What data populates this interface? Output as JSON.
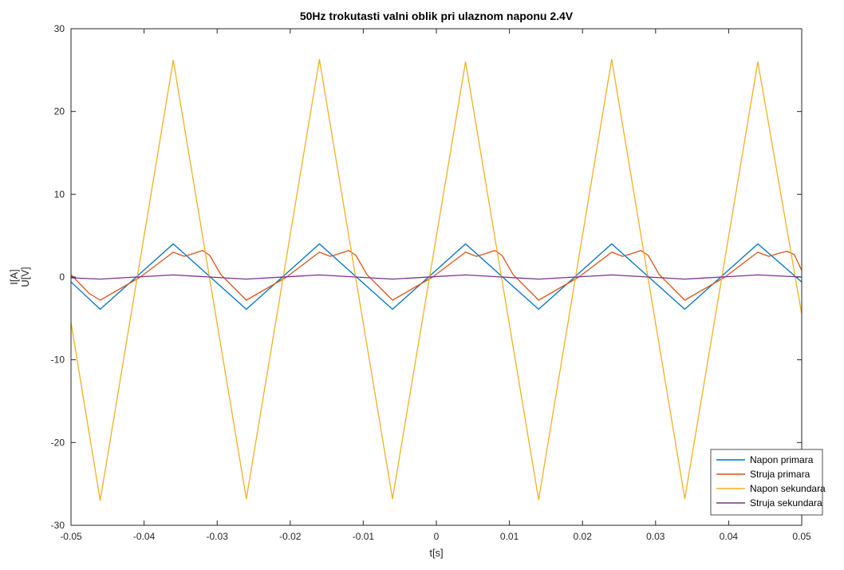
{
  "chart_data": {
    "type": "line",
    "title": "50Hz trokutasti valni oblik pri ulaznom naponu 2.4V",
    "xlabel": "t[s]",
    "ylabel_line1": "I[A]",
    "ylabel_line2": "U[V]",
    "xlim": [
      -0.05,
      0.05
    ],
    "ylim": [
      -30,
      30
    ],
    "xticks": [
      -0.05,
      -0.04,
      -0.03,
      -0.02,
      -0.01,
      0,
      0.01,
      0.02,
      0.03,
      0.04,
      0.05
    ],
    "xtick_labels": [
      "-0.05",
      "-0.04",
      "-0.03",
      "-0.02",
      "-0.01",
      "0",
      "0.01",
      "0.02",
      "0.03",
      "0.04",
      "0.05"
    ],
    "yticks": [
      -30,
      -20,
      -10,
      0,
      10,
      20,
      30
    ],
    "ytick_labels": [
      "-30",
      "-20",
      "-10",
      "0",
      "10",
      "20",
      "30"
    ],
    "grid": false,
    "legend_position": "bottom-right",
    "series": [
      {
        "name": "Napon primara",
        "color": "#0072BD",
        "x": [
          -0.05,
          -0.046,
          -0.036,
          -0.026,
          -0.016,
          -0.006,
          0.004,
          0.014,
          0.024,
          0.034,
          0.044,
          0.05
        ],
        "y": [
          -0.6,
          -3.9,
          4.0,
          -3.9,
          4.0,
          -3.9,
          4.0,
          -3.9,
          4.0,
          -3.9,
          4.0,
          -0.6
        ]
      },
      {
        "name": "Struja primara",
        "color": "#D95319",
        "x": [
          -0.05,
          -0.0475,
          -0.046,
          -0.0405,
          -0.036,
          -0.0345,
          -0.033,
          -0.032,
          -0.031,
          -0.0295,
          -0.026,
          -0.0205,
          -0.016,
          -0.0145,
          -0.013,
          -0.012,
          -0.011,
          -0.0095,
          -0.006,
          -0.0005,
          0.004,
          0.0055,
          0.007,
          0.008,
          0.009,
          0.0105,
          0.014,
          0.0195,
          0.024,
          0.0255,
          0.027,
          0.028,
          0.029,
          0.0305,
          0.034,
          0.0395,
          0.044,
          0.0455,
          0.047,
          0.048,
          0.049,
          0.05
        ],
        "y": [
          0.3,
          -2.0,
          -2.8,
          0.0,
          3.0,
          2.5,
          2.9,
          3.2,
          2.6,
          0.3,
          -2.8,
          0.0,
          3.0,
          2.5,
          2.9,
          3.2,
          2.6,
          0.3,
          -2.8,
          0.0,
          3.0,
          2.5,
          2.9,
          3.2,
          2.6,
          0.3,
          -2.8,
          0.0,
          3.0,
          2.5,
          2.9,
          3.2,
          2.6,
          0.3,
          -2.8,
          0.0,
          3.0,
          2.5,
          2.9,
          3.1,
          2.7,
          0.8
        ]
      },
      {
        "name": "Napon sekundara",
        "color": "#EDB120",
        "x": [
          -0.05,
          -0.046,
          -0.036,
          -0.026,
          -0.016,
          -0.006,
          0.004,
          0.014,
          0.024,
          0.034,
          0.044,
          0.05
        ],
        "y": [
          -5.5,
          -27.0,
          26.2,
          -26.8,
          26.3,
          -26.8,
          26.0,
          -26.9,
          26.3,
          -26.8,
          26.0,
          -4.5
        ]
      },
      {
        "name": "Struja sekundara",
        "color": "#7E2F8E",
        "x": [
          -0.05,
          -0.046,
          -0.036,
          -0.026,
          -0.016,
          -0.006,
          0.004,
          0.014,
          0.024,
          0.034,
          0.044,
          0.05
        ],
        "y": [
          -0.1,
          -0.25,
          0.25,
          -0.25,
          0.25,
          -0.25,
          0.25,
          -0.25,
          0.25,
          -0.25,
          0.25,
          0.0
        ]
      }
    ]
  }
}
